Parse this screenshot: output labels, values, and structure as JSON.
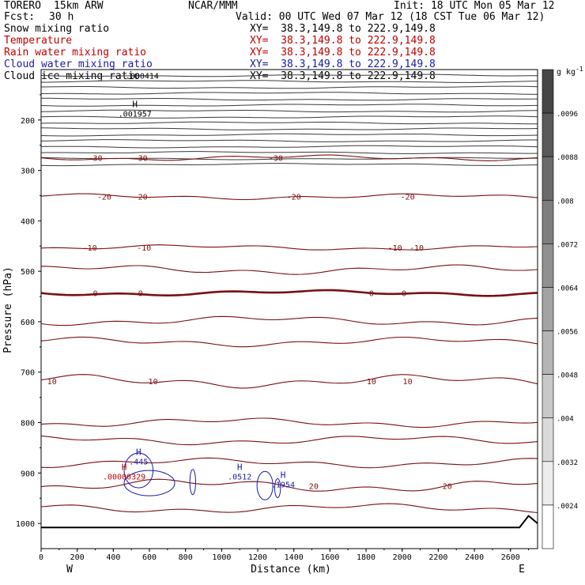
{
  "header": {
    "model": "TORERO",
    "resolution": "15km ARW",
    "center": "NCAR/MMM",
    "init": "Init: 18 UTC Mon 05 Mar 12",
    "fcst_label": "Fcst:",
    "fcst_value": "30 h",
    "valid": "Valid: 00 UTC Wed 07 Mar 12 (18 CST Tue 06 Mar 12)"
  },
  "fields": [
    {
      "name": "Snow mixing ratio",
      "xy": "XY=  38.3,149.8 to 222.9,149.8",
      "color": "#000000"
    },
    {
      "name": "Temperature",
      "xy": "XY=  38.3,149.8 to 222.9,149.8",
      "color": "#c00000"
    },
    {
      "name": "Rain water mixing ratio",
      "xy": "XY=  38.3,149.8 to 222.9,149.8",
      "color": "#c00000"
    },
    {
      "name": "Cloud water mixing ratio",
      "xy": "XY=  38.3,149.8 to 222.9,149.8",
      "color": "#1a1aa8"
    },
    {
      "name": "Cloud ice mixing ratio",
      "xy": "XY=  38.3,149.8 to 222.9,149.8",
      "color": "#000000"
    }
  ],
  "colorbar": {
    "unit": "g kg",
    "unit_exp": "-1",
    "ticks": [
      ".0096",
      ".0088",
      ".008",
      ".0072",
      ".0064",
      ".0056",
      ".0048",
      ".004",
      ".0032",
      ".0024"
    ]
  },
  "chart_data": {
    "type": "contour",
    "xlabel": "Distance (km)",
    "ylabel": "Pressure (hPa)",
    "xlim": [
      0,
      2750
    ],
    "ylim": [
      1050,
      100
    ],
    "xticks": [
      0,
      200,
      400,
      600,
      800,
      1000,
      1200,
      1400,
      1600,
      1800,
      2000,
      2200,
      2400,
      2600
    ],
    "yticks": [
      200,
      300,
      400,
      500,
      600,
      700,
      800,
      900,
      1000
    ],
    "x_end_labels": {
      "left": "W",
      "right": "E"
    },
    "temperature_contours": [
      {
        "level": -30,
        "pressure": 275,
        "labels": [
          {
            "text": "-30",
            "x": 300
          },
          {
            "text": "-30",
            "x": 550
          },
          {
            "text": "-30",
            "x": 1300
          }
        ]
      },
      {
        "level": -20,
        "pressure": 352,
        "labels": [
          {
            "text": "-20",
            "x": 350
          },
          {
            "text": "-20",
            "x": 550
          },
          {
            "text": "-20",
            "x": 1400
          },
          {
            "text": "-20",
            "x": 2030
          }
        ]
      },
      {
        "level": -10,
        "pressure": 453,
        "labels": [
          {
            "text": "-10",
            "x": 270
          },
          {
            "text": "-10",
            "x": 570
          },
          {
            "text": "-10",
            "x": 1960
          },
          {
            "text": "-10",
            "x": 2080
          }
        ]
      },
      {
        "level": 0,
        "pressure": 543,
        "labels": [
          {
            "text": "0",
            "x": 300
          },
          {
            "text": "0",
            "x": 550
          },
          {
            "text": "0",
            "x": 1830
          },
          {
            "text": "0",
            "x": 2010
          }
        ]
      },
      {
        "level": 10,
        "pressure": 718,
        "labels": [
          {
            "text": "10",
            "x": 60
          },
          {
            "text": "10",
            "x": 620
          },
          {
            "text": "10",
            "x": 1830
          },
          {
            "text": "10",
            "x": 2030
          }
        ]
      },
      {
        "level": 20,
        "pressure": 925,
        "labels": [
          {
            "text": "20",
            "x": 1510
          },
          {
            "text": "20",
            "x": 2250
          }
        ]
      }
    ],
    "extrema_labels": [
      {
        "marker": "H",
        "value": ".001957",
        "x": 520,
        "p": 190,
        "color": "#000000"
      },
      {
        "marker": "",
        "value": ".000414",
        "x": 560,
        "p": 115,
        "color": "#000000"
      },
      {
        "marker": "H",
        "value": ".445",
        "x": 540,
        "p": 880,
        "color": "#1a1aa8"
      },
      {
        "marker": "H",
        "value": ".0512",
        "x": 1100,
        "p": 910,
        "color": "#1a1aa8"
      },
      {
        "marker": "H",
        "value": ".1954",
        "x": 1340,
        "p": 925,
        "color": "#1a1aa8"
      },
      {
        "marker": "H",
        "value": ".00000329",
        "x": 460,
        "p": 910,
        "color": "#c00000"
      }
    ],
    "cloud_ice_layer_count": 16
  }
}
